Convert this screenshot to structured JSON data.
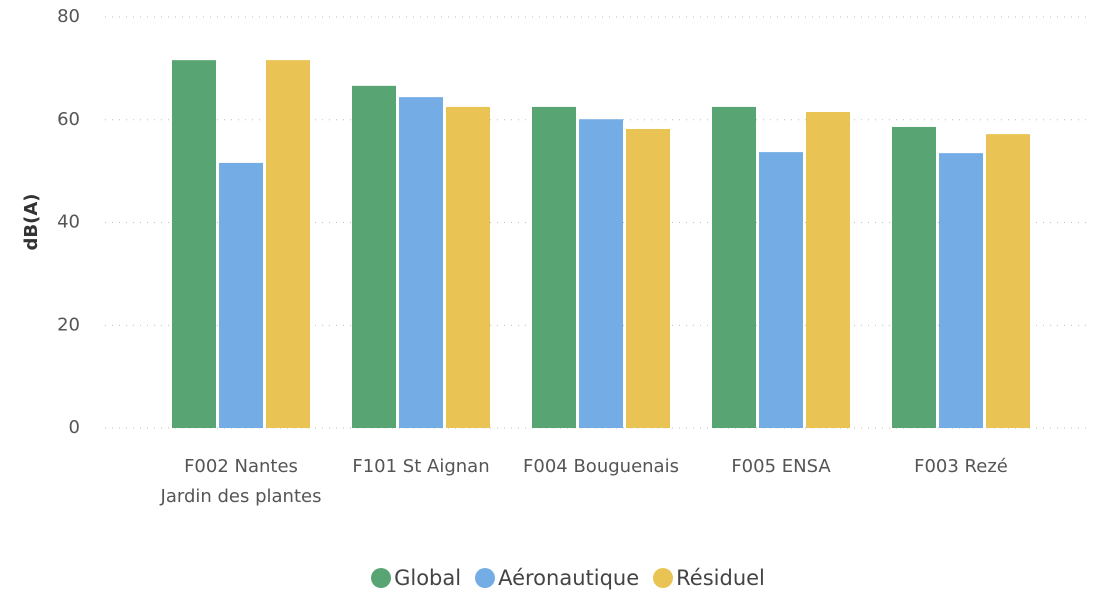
{
  "chart_data": {
    "type": "bar",
    "y_label": "dB(A)",
    "categories": [
      "F002 Nantes Jardin des plantes",
      "F101 St Aignan",
      "F004 Bouguenais",
      "F005 ENSA",
      "F003 Rezé"
    ],
    "series": [
      {
        "name": "Global",
        "color": "#59a473",
        "values": [
          71.6,
          66.6,
          62.5,
          62.5,
          58.6
        ]
      },
      {
        "name": "Aéronautique",
        "color": "#74ade5",
        "values": [
          51.6,
          64.4,
          60.1,
          53.7,
          53.5
        ]
      },
      {
        "name": "Résiduel",
        "color": "#e9c353",
        "values": [
          71.6,
          62.5,
          58.2,
          61.5,
          57.2
        ]
      }
    ],
    "ylim": [
      0,
      80
    ],
    "yticks": [
      0,
      20,
      40,
      60,
      80
    ],
    "grid": true,
    "legend": "bottom"
  }
}
